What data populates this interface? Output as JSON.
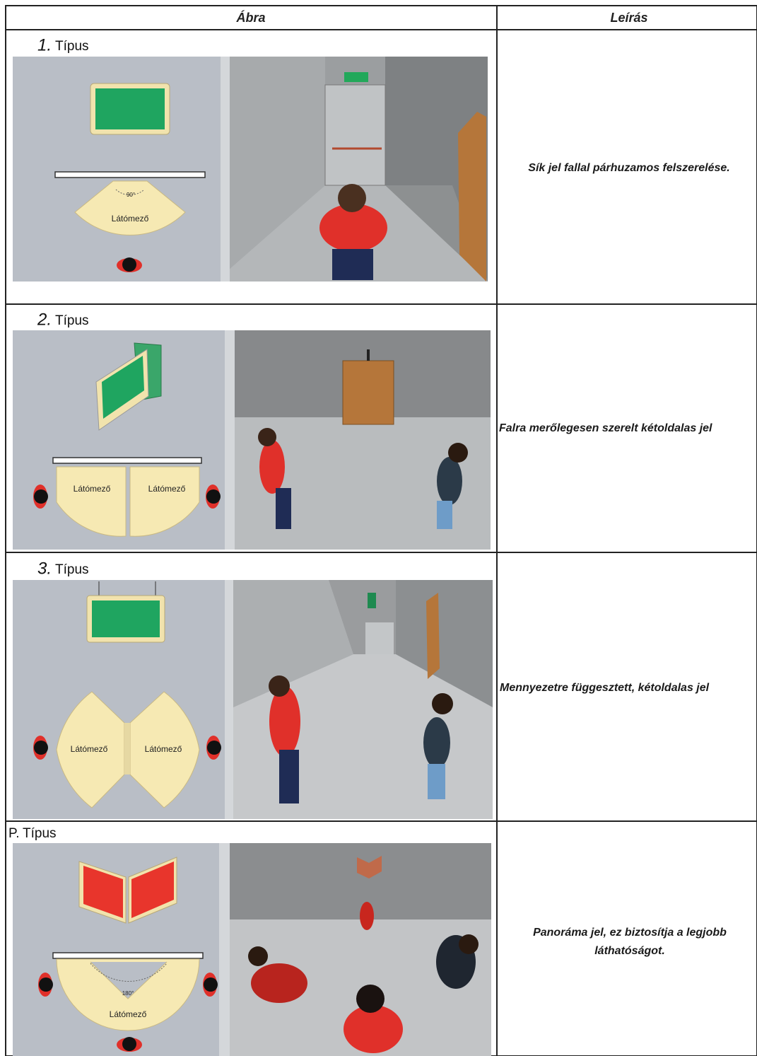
{
  "table": {
    "header": [
      "Ábra",
      "Leírás"
    ],
    "rows": [
      {
        "number": "1.",
        "word": "Típus",
        "diagram_labels": [
          "90°",
          "Látómező"
        ],
        "description": [
          "Sík jel fallal párhuzamos felszerelése."
        ]
      },
      {
        "number": "2.",
        "word": "Típus",
        "diagram_labels": [
          "Látómező",
          "Látómező"
        ],
        "description": [
          "Falra merőlegesen szerelt kétoldalas jel"
        ]
      },
      {
        "number": "3.",
        "word": "Típus",
        "diagram_labels": [
          "Látómező",
          "Látómező"
        ],
        "description": [
          "Mennyezetre függesztett, kétoldalas jel"
        ]
      },
      {
        "number": "P.",
        "word": "Típus",
        "diagram_labels": [
          "180°",
          "Látómező"
        ],
        "description": [
          "Panoráma jel, ez biztosítja a legjobb",
          "láthatóságot."
        ]
      }
    ]
  }
}
